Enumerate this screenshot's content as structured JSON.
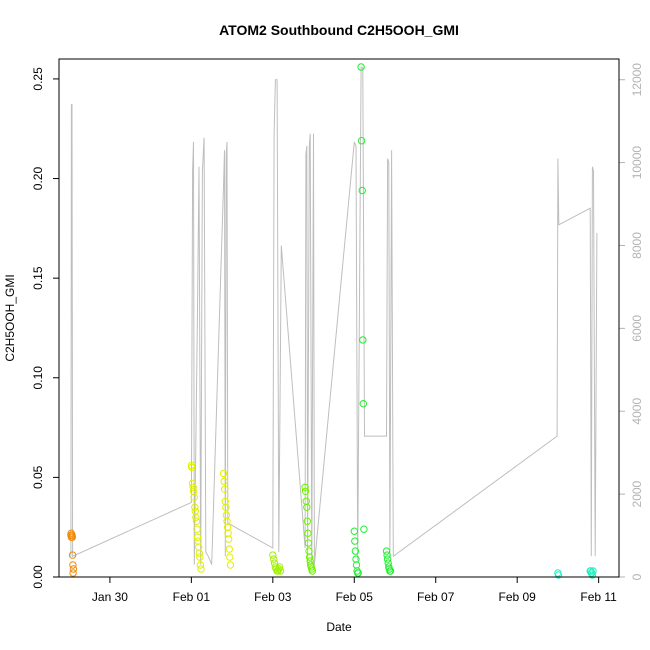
{
  "chart_data": {
    "type": "scatter",
    "title": "ATOM2 Southbound C2H5OOH_GMI",
    "xlabel": "Date",
    "ylabel": "C2H5OOH_GMI",
    "xlim": [
      "2017-01-28T18:00",
      "2017-02-11T12:00"
    ],
    "ylim": [
      0,
      0.26
    ],
    "y2lim": [
      0,
      12500
    ],
    "grid": false,
    "legend": "none",
    "x_ticks": [
      {
        "date": "2017-01-30",
        "label": "Jan 30"
      },
      {
        "date": "2017-02-01",
        "label": "Feb 01"
      },
      {
        "date": "2017-02-03",
        "label": "Feb 03"
      },
      {
        "date": "2017-02-05",
        "label": "Feb 05"
      },
      {
        "date": "2017-02-07",
        "label": "Feb 07"
      },
      {
        "date": "2017-02-09",
        "label": "Feb 09"
      },
      {
        "date": "2017-02-11",
        "label": "Feb 11"
      }
    ],
    "y_ticks": [
      {
        "value": 0.0,
        "label": "0.00"
      },
      {
        "value": 0.05,
        "label": "0.05"
      },
      {
        "value": 0.1,
        "label": "0.10"
      },
      {
        "value": 0.15,
        "label": "0.15"
      },
      {
        "value": 0.2,
        "label": "0.20"
      },
      {
        "value": 0.25,
        "label": "0.25"
      }
    ],
    "y2_ticks": [
      {
        "value": 0,
        "label": "0"
      },
      {
        "value": 2000,
        "label": "2000"
      },
      {
        "value": 4000,
        "label": "4000"
      },
      {
        "value": 6000,
        "label": "6000"
      },
      {
        "value": 8000,
        "label": "8000"
      },
      {
        "value": 10000,
        "label": "10000"
      },
      {
        "value": 12000,
        "label": "12000"
      }
    ],
    "altitude_color": "#bebebe",
    "altitude_series": [
      [
        "2017-01-29T01:00",
        500
      ],
      [
        "2017-01-29T01:20",
        11400
      ],
      [
        "2017-01-29T01:40",
        11400
      ],
      [
        "2017-01-29T02:00",
        500
      ],
      [
        "2017-02-01T00:00",
        1800
      ],
      [
        "2017-02-01T00:45",
        9800
      ],
      [
        "2017-02-01T01:15",
        10500
      ],
      [
        "2017-02-01T01:45",
        300
      ],
      [
        "2017-02-01T03:30",
        6000
      ],
      [
        "2017-02-01T04:30",
        9900
      ],
      [
        "2017-02-01T05:30",
        300
      ],
      [
        "2017-02-01T06:30",
        9800
      ],
      [
        "2017-02-01T07:30",
        10600
      ],
      [
        "2017-02-01T08:30",
        600
      ],
      [
        "2017-02-01T10:00",
        500
      ],
      [
        "2017-02-01T12:00",
        300
      ],
      [
        "2017-02-01T19:00",
        9500
      ],
      [
        "2017-02-01T19:30",
        10300
      ],
      [
        "2017-02-01T20:00",
        500
      ],
      [
        "2017-02-01T20:30",
        10200
      ],
      [
        "2017-02-01T21:00",
        10500
      ],
      [
        "2017-02-01T21:30",
        1300
      ],
      [
        "2017-02-03T00:00",
        700
      ],
      [
        "2017-02-03T00:45",
        10700
      ],
      [
        "2017-02-03T01:30",
        12000
      ],
      [
        "2017-02-03T02:30",
        12000
      ],
      [
        "2017-02-03T03:30",
        600
      ],
      [
        "2017-02-03T05:00",
        8000
      ],
      [
        "2017-02-03T19:00",
        700
      ],
      [
        "2017-02-03T19:30",
        10200
      ],
      [
        "2017-02-03T20:00",
        10400
      ],
      [
        "2017-02-03T20:30",
        300
      ],
      [
        "2017-02-03T21:30",
        10400
      ],
      [
        "2017-02-03T22:00",
        10700
      ],
      [
        "2017-02-03T23:00",
        300
      ],
      [
        "2017-02-04T00:00",
        10700
      ],
      [
        "2017-02-04T00:30",
        300
      ],
      [
        "2017-02-05T00:00",
        10500
      ],
      [
        "2017-02-05T01:00",
        10400
      ],
      [
        "2017-02-05T02:00",
        400
      ],
      [
        "2017-02-05T04:00",
        12300
      ],
      [
        "2017-02-05T05:00",
        12300
      ],
      [
        "2017-02-05T06:00",
        3400
      ],
      [
        "2017-02-05T19:00",
        3400
      ],
      [
        "2017-02-05T19:40",
        10100
      ],
      [
        "2017-02-05T20:20",
        10000
      ],
      [
        "2017-02-05T21:00",
        500
      ],
      [
        "2017-02-05T22:00",
        10300
      ],
      [
        "2017-02-05T23:00",
        500
      ],
      [
        "2017-02-09T23:30",
        3400
      ],
      [
        "2017-02-10T00:00",
        10100
      ],
      [
        "2017-02-10T00:30",
        8500
      ],
      [
        "2017-02-10T19:00",
        8900
      ],
      [
        "2017-02-10T19:40",
        500
      ],
      [
        "2017-02-10T20:20",
        9900
      ],
      [
        "2017-02-10T21:00",
        9800
      ],
      [
        "2017-02-10T22:00",
        500
      ],
      [
        "2017-02-10T23:00",
        8300
      ]
    ],
    "series": [
      {
        "color": "#f08a0a",
        "points": [
          [
            "2017-01-29T01:00",
            0.021
          ],
          [
            "2017-01-29T01:10",
            0.022
          ],
          [
            "2017-01-29T01:20",
            0.02
          ],
          [
            "2017-01-29T01:30",
            0.021
          ],
          [
            "2017-01-29T01:40",
            0.021
          ],
          [
            "2017-01-29T01:50",
            0.02
          ],
          [
            "2017-01-29T02:00",
            0.011
          ],
          [
            "2017-01-29T02:10",
            0.006
          ],
          [
            "2017-01-29T02:20",
            0.002
          ],
          [
            "2017-01-29T02:30",
            0.004
          ]
        ]
      },
      {
        "color": "#e0f000",
        "points": [
          [
            "2017-02-01T00:00",
            0.056
          ],
          [
            "2017-02-01T00:20",
            0.055
          ],
          [
            "2017-02-01T00:40",
            0.047
          ],
          [
            "2017-02-01T01:00",
            0.045
          ],
          [
            "2017-02-01T01:20",
            0.043
          ],
          [
            "2017-02-01T01:40",
            0.04
          ],
          [
            "2017-02-01T02:00",
            0.035
          ],
          [
            "2017-02-01T02:20",
            0.033
          ],
          [
            "2017-02-01T02:40",
            0.03
          ],
          [
            "2017-02-01T03:00",
            0.028
          ],
          [
            "2017-02-01T03:20",
            0.024
          ],
          [
            "2017-02-01T03:40",
            0.02
          ],
          [
            "2017-02-01T04:00",
            0.018
          ],
          [
            "2017-02-01T04:20",
            0.015
          ],
          [
            "2017-02-01T04:40",
            0.012
          ],
          [
            "2017-02-01T05:00",
            0.01
          ],
          [
            "2017-02-01T05:20",
            0.006
          ],
          [
            "2017-02-01T05:40",
            0.004
          ],
          [
            "2017-02-01T19:00",
            0.052
          ],
          [
            "2017-02-01T19:20",
            0.048
          ],
          [
            "2017-02-01T19:40",
            0.044
          ],
          [
            "2017-02-01T20:00",
            0.038
          ],
          [
            "2017-02-01T20:20",
            0.035
          ],
          [
            "2017-02-01T20:40",
            0.031
          ],
          [
            "2017-02-01T21:00",
            0.028
          ],
          [
            "2017-02-01T21:20",
            0.025
          ],
          [
            "2017-02-01T21:40",
            0.022
          ],
          [
            "2017-02-01T22:00",
            0.019
          ],
          [
            "2017-02-01T22:20",
            0.014
          ],
          [
            "2017-02-01T22:40",
            0.01
          ],
          [
            "2017-02-01T23:00",
            0.006
          ]
        ]
      },
      {
        "color": "#a0f000",
        "points": [
          [
            "2017-02-03T00:00",
            0.011
          ],
          [
            "2017-02-03T00:30",
            0.009
          ],
          [
            "2017-02-03T01:00",
            0.007
          ],
          [
            "2017-02-03T01:30",
            0.005
          ],
          [
            "2017-02-03T02:00",
            0.004
          ],
          [
            "2017-02-03T02:30",
            0.003
          ],
          [
            "2017-02-03T03:00",
            0.003
          ],
          [
            "2017-02-03T03:30",
            0.004
          ],
          [
            "2017-02-03T04:00",
            0.005
          ],
          [
            "2017-02-03T04:30",
            0.003
          ]
        ]
      },
      {
        "color": "#6ef000",
        "points": [
          [
            "2017-02-03T19:00",
            0.045
          ],
          [
            "2017-02-03T19:20",
            0.043
          ],
          [
            "2017-02-03T19:40",
            0.038
          ],
          [
            "2017-02-03T20:00",
            0.035
          ],
          [
            "2017-02-03T20:20",
            0.028
          ],
          [
            "2017-02-03T20:40",
            0.022
          ],
          [
            "2017-02-03T21:00",
            0.017
          ],
          [
            "2017-02-03T21:20",
            0.013
          ],
          [
            "2017-02-03T21:40",
            0.01
          ],
          [
            "2017-02-03T22:00",
            0.008
          ],
          [
            "2017-02-03T22:20",
            0.006
          ],
          [
            "2017-02-03T22:40",
            0.005
          ],
          [
            "2017-02-03T23:00",
            0.004
          ],
          [
            "2017-02-03T23:20",
            0.003
          ]
        ]
      },
      {
        "color": "#20f030",
        "points": [
          [
            "2017-02-05T00:00",
            0.023
          ],
          [
            "2017-02-05T00:20",
            0.018
          ],
          [
            "2017-02-05T00:40",
            0.013
          ],
          [
            "2017-02-05T01:00",
            0.009
          ],
          [
            "2017-02-05T01:20",
            0.006
          ],
          [
            "2017-02-05T01:40",
            0.003
          ],
          [
            "2017-02-05T02:00",
            0.002
          ],
          [
            "2017-02-05T02:20",
            0.002
          ],
          [
            "2017-02-05T04:00",
            0.256
          ],
          [
            "2017-02-05T04:20",
            0.219
          ],
          [
            "2017-02-05T04:40",
            0.194
          ],
          [
            "2017-02-05T05:00",
            0.119
          ],
          [
            "2017-02-05T05:20",
            0.087
          ],
          [
            "2017-02-05T05:40",
            0.024
          ],
          [
            "2017-02-05T19:00",
            0.013
          ],
          [
            "2017-02-05T19:20",
            0.011
          ],
          [
            "2017-02-05T19:40",
            0.009
          ],
          [
            "2017-02-05T20:00",
            0.007
          ],
          [
            "2017-02-05T20:20",
            0.005
          ],
          [
            "2017-02-05T20:40",
            0.004
          ],
          [
            "2017-02-05T21:00",
            0.003
          ],
          [
            "2017-02-05T21:20",
            0.003
          ]
        ]
      },
      {
        "color": "#20f0c0",
        "points": [
          [
            "2017-02-10T00:00",
            0.002
          ],
          [
            "2017-02-10T00:20",
            0.001
          ],
          [
            "2017-02-10T19:00",
            0.003
          ],
          [
            "2017-02-10T19:20",
            0.003
          ],
          [
            "2017-02-10T19:40",
            0.002
          ],
          [
            "2017-02-10T20:00",
            0.002
          ],
          [
            "2017-02-10T20:20",
            0.001
          ],
          [
            "2017-02-10T20:40",
            0.003
          ]
        ]
      }
    ]
  }
}
